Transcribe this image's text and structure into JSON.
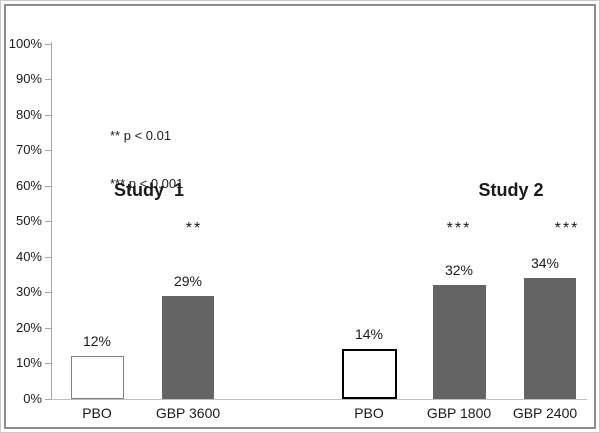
{
  "chart_data": {
    "type": "bar",
    "title": "",
    "xlabel": "",
    "ylabel": "",
    "ylim": [
      0,
      100
    ],
    "grid": false,
    "y_tick_labels": [
      "0%",
      "10%",
      "20%",
      "30%",
      "40%",
      "50%",
      "60%",
      "70%",
      "80%",
      "90%",
      "100%"
    ],
    "y_tick_values": [
      0,
      10,
      20,
      30,
      40,
      50,
      60,
      70,
      80,
      90,
      100
    ],
    "categories": [
      "PBO",
      "GBP 3600",
      "PBO",
      "GBP 1800",
      "GBP 2400"
    ],
    "values": [
      12,
      29,
      14,
      32,
      34
    ],
    "value_labels": [
      "12%",
      "29%",
      "14%",
      "32%",
      "34%"
    ],
    "significance": [
      "",
      "**",
      "",
      "***",
      "***"
    ],
    "groups": [
      {
        "name": "Study  1",
        "bar_indices": [
          0,
          1
        ]
      },
      {
        "name": "Study 2",
        "bar_indices": [
          2,
          3,
          4
        ]
      }
    ],
    "legend": {
      "line1": "** p < 0.01",
      "line2": "*** p < 0.001",
      "position": "upper-left-inside"
    },
    "bar_styles": [
      {
        "fill": "#ffffff",
        "border_color": "#808080",
        "border_width": 1.5
      },
      {
        "fill": "#646464",
        "border_color": "#646464",
        "border_width": 0
      },
      {
        "fill": "#ffffff",
        "border_color": "#000000",
        "border_width": 2
      },
      {
        "fill": "#646464",
        "border_color": "#646464",
        "border_width": 0
      },
      {
        "fill": "#646464",
        "border_color": "#646464",
        "border_width": 0
      }
    ]
  },
  "styles": {
    "bar_dark_fill": "#646464",
    "placebo_fill": "#ffffff",
    "axis_color": "#a6a6a6",
    "baseline_color": "#bfbfbf",
    "inner_frame_border": "#8c8c8c",
    "outer_border": "#c9c9c9",
    "text_color": "#1a1a1a",
    "background": "#ffffff"
  }
}
